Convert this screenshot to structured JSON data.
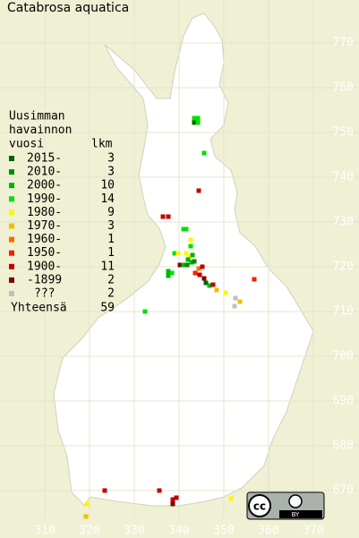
{
  "title": "Catabrosa aquatica",
  "legend": {
    "heading": [
      "Uusimman",
      "havainnon",
      "vuosi"
    ],
    "count_heading": "lkm",
    "items": [
      {
        "label": "2015-",
        "count": 3,
        "color": "#006400"
      },
      {
        "label": "2010-",
        "count": 3,
        "color": "#008c00"
      },
      {
        "label": "2000-",
        "count": 10,
        "color": "#00b400"
      },
      {
        "label": "1990-",
        "count": 14,
        "color": "#00e000"
      },
      {
        "label": "1980-",
        "count": 9,
        "color": "#f8f800"
      },
      {
        "label": "1970-",
        "count": 3,
        "color": "#f0c000"
      },
      {
        "label": "1960-",
        "count": 1,
        "color": "#f07000"
      },
      {
        "label": "1950-",
        "count": 1,
        "color": "#f02000"
      },
      {
        "label": "1900-",
        "count": 11,
        "color": "#c00000"
      },
      {
        "label": "-1899",
        "count": 2,
        "color": "#800000"
      },
      {
        "label": "???",
        "count": 2,
        "color": "#c0c0c0"
      }
    ],
    "total_label": "Yhteensä",
    "total": 59
  },
  "axes": {
    "x_ticks": [
      310,
      320,
      330,
      340,
      350,
      360,
      370
    ],
    "y_ticks": [
      670,
      680,
      690,
      700,
      710,
      720,
      730,
      740,
      750,
      760,
      770
    ]
  },
  "observations": [
    [
      343.4,
      753.2,
      3
    ],
    [
      344.2,
      753.2,
      3
    ],
    [
      343.4,
      752.2,
      0
    ],
    [
      344.2,
      752.2,
      3
    ],
    [
      345.6,
      745.4,
      3
    ],
    [
      344.4,
      737,
      8
    ],
    [
      336.4,
      731.2,
      8
    ],
    [
      337.6,
      731.2,
      8
    ],
    [
      341,
      728.4,
      3
    ],
    [
      341.6,
      728.4,
      3
    ],
    [
      342.6,
      726,
      4
    ],
    [
      342.6,
      724.6,
      3
    ],
    [
      339,
      723,
      3
    ],
    [
      339.8,
      723,
      4
    ],
    [
      341.6,
      723,
      4
    ],
    [
      342.2,
      722.2,
      4
    ],
    [
      343,
      722.6,
      2
    ],
    [
      342,
      721.6,
      2
    ],
    [
      342.8,
      721,
      2
    ],
    [
      343.4,
      721.2,
      1
    ],
    [
      340.2,
      720.4,
      9
    ],
    [
      341,
      720.4,
      2
    ],
    [
      341.8,
      720.4,
      1
    ],
    [
      337.6,
      718,
      2
    ],
    [
      337.6,
      719,
      2
    ],
    [
      338.4,
      718.6,
      3
    ],
    [
      343.6,
      718.6,
      7
    ],
    [
      344.4,
      719.6,
      6
    ],
    [
      345.2,
      720,
      8
    ],
    [
      344.6,
      718.2,
      8
    ],
    [
      345.6,
      717.4,
      9
    ],
    [
      346,
      716.4,
      0
    ],
    [
      346.8,
      715.8,
      2
    ],
    [
      347.6,
      716,
      8
    ],
    [
      348.4,
      714.8,
      5
    ],
    [
      350.4,
      714.2,
      4
    ],
    [
      352.6,
      713,
      10
    ],
    [
      352.4,
      711.2,
      10
    ],
    [
      353.6,
      712.2,
      5
    ],
    [
      356.8,
      717.2,
      7
    ],
    [
      332.4,
      710,
      3
    ],
    [
      323.4,
      670,
      8
    ],
    [
      335.6,
      670,
      8
    ],
    [
      338.6,
      668,
      8
    ],
    [
      338.6,
      667,
      9
    ],
    [
      339.4,
      668.4,
      8
    ],
    [
      319.4,
      667,
      4
    ],
    [
      319.2,
      664.2,
      5
    ],
    [
      351.6,
      668.2,
      4
    ]
  ],
  "license": {
    "cc": "cc",
    "by": "BY"
  }
}
